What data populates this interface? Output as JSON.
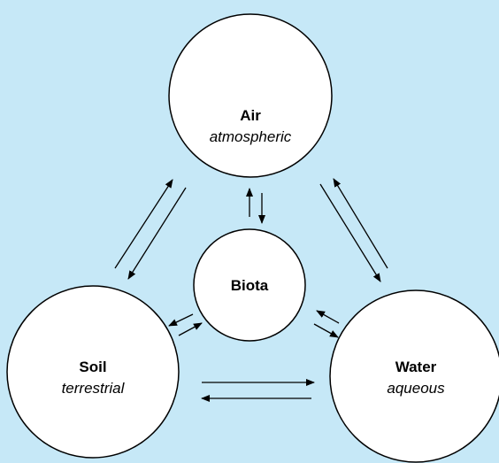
{
  "nodes": [
    {
      "label": "Air",
      "sublabel": "atmospheric"
    },
    {
      "label": "Biota"
    },
    {
      "label": "Soil",
      "sublabel": "terrestrial"
    },
    {
      "label": "Water",
      "sublabel": "aqueous"
    }
  ]
}
